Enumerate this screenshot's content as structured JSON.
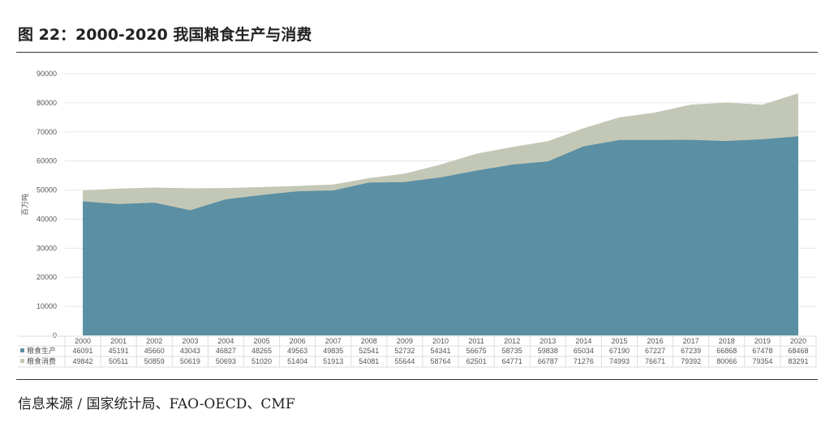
{
  "header": {
    "title": "图 22：2000-2020 我国粮食生产与消费"
  },
  "footer": {
    "source": "信息来源 / 国家统计局、FAO-OECD、CMF"
  },
  "chart_data": {
    "type": "area",
    "title": "图 22：2000-2020 我国粮食生产与消费",
    "xlabel": "",
    "ylabel": "百万吨",
    "ylim": [
      0,
      90000
    ],
    "yticks": [
      0,
      10000,
      20000,
      30000,
      40000,
      50000,
      60000,
      70000,
      80000,
      90000
    ],
    "categories": [
      "2000",
      "2001",
      "2002",
      "2003",
      "2004",
      "2005",
      "2006",
      "2007",
      "2008",
      "2009",
      "2010",
      "2011",
      "2012",
      "2013",
      "2014",
      "2015",
      "2016",
      "2017",
      "2018",
      "2019",
      "2020"
    ],
    "series": [
      {
        "name": "粮食生产",
        "color": "#5b8fa4",
        "values": [
          46091,
          45191,
          45660,
          43043,
          46827,
          48265,
          49563,
          49835,
          52541,
          52732,
          54341,
          56675,
          58735,
          59838,
          65034,
          67190,
          67227,
          67239,
          66868,
          67478,
          68468
        ]
      },
      {
        "name": "粮食消费",
        "color": "#c3c8b6",
        "values": [
          49842,
          50511,
          50859,
          50619,
          50693,
          51020,
          51404,
          51913,
          54081,
          55644,
          58764,
          62501,
          64771,
          66787,
          71276,
          74993,
          76671,
          79392,
          80066,
          79354,
          83291
        ]
      }
    ],
    "legend": "data-table-bottom",
    "grid": true
  }
}
